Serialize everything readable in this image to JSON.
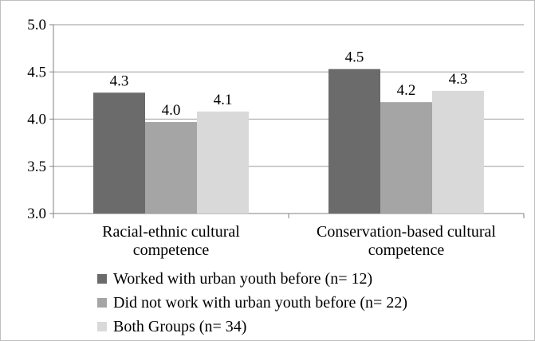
{
  "chart_data": {
    "type": "bar",
    "categories": [
      [
        "Racial-ethnic cultural",
        "competence"
      ],
      [
        "Conservation-based cultural",
        "competence"
      ]
    ],
    "series": [
      {
        "name": "Worked with urban youth before (n= 12)",
        "values": [
          4.28,
          4.53
        ],
        "labels": [
          "4.3",
          "4.5"
        ],
        "color": "#6b6b6b"
      },
      {
        "name": "Did not work with urban youth before (n= 22)",
        "values": [
          3.97,
          4.18
        ],
        "labels": [
          "4.0",
          "4.2"
        ],
        "color": "#a5a5a5"
      },
      {
        "name": "Both Groups (n= 34)",
        "values": [
          4.08,
          4.3
        ],
        "labels": [
          "4.1",
          "4.3"
        ],
        "color": "#d9d9d9"
      }
    ],
    "yticks": [
      "3.0",
      "3.5",
      "4.0",
      "4.5",
      "5.0"
    ],
    "ylim": [
      3.0,
      5.0
    ],
    "grid": true,
    "legend_position": "bottom-left"
  }
}
